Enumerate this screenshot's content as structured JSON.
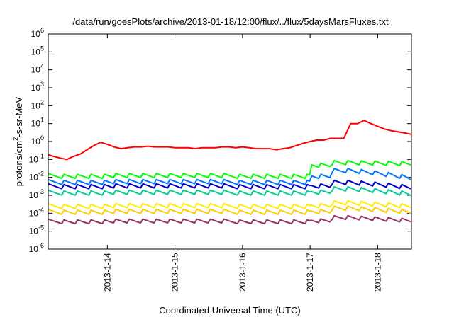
{
  "chart_data": {
    "type": "line",
    "title": "/data/run/goesPlots/archive/2013-01-18/12:00/flux/../flux/5daysMarsFluxes.txt",
    "xlabel": "Coordinated Universal Time (UTC)",
    "ylabel": "protons/cm2-s-sr-MeV",
    "yscale": "log",
    "ylim": [
      1e-06,
      1000000.0
    ],
    "xlim": [
      "2013-01-13T03:00",
      "2013-01-18T12:00"
    ],
    "grid": false,
    "legend": "none",
    "yticks": [
      {
        "exp": "-6"
      },
      {
        "exp": "-5"
      },
      {
        "exp": "-4"
      },
      {
        "exp": "-3"
      },
      {
        "exp": "-2"
      },
      {
        "exp": "-1"
      },
      {
        "exp": "0"
      },
      {
        "exp": "1"
      },
      {
        "exp": "2"
      },
      {
        "exp": "3"
      },
      {
        "exp": "4"
      },
      {
        "exp": "5"
      },
      {
        "exp": "6"
      }
    ],
    "xticks": [
      {
        "label": "2013-1-14",
        "day": 1
      },
      {
        "label": "2013-1-15",
        "day": 2
      },
      {
        "label": "2013-1-16",
        "day": 3
      },
      {
        "label": "2013-1-17",
        "day": 4
      },
      {
        "label": "2013-1-18",
        "day": 5
      }
    ],
    "series": [
      {
        "color": "#ff0000",
        "points": [
          [
            0.0,
            0.3
          ],
          [
            0.1,
            0.2
          ],
          [
            0.2,
            0.15
          ],
          [
            0.3,
            0.12
          ],
          [
            0.4,
            0.1
          ],
          [
            0.5,
            0.15
          ],
          [
            0.6,
            0.2
          ],
          [
            0.7,
            0.35
          ],
          [
            0.8,
            0.6
          ],
          [
            0.9,
            0.9
          ],
          [
            1.0,
            0.7
          ],
          [
            1.1,
            0.5
          ],
          [
            1.2,
            0.4
          ],
          [
            1.3,
            0.45
          ],
          [
            1.4,
            0.5
          ],
          [
            1.5,
            0.5
          ],
          [
            1.6,
            0.55
          ],
          [
            1.7,
            0.5
          ],
          [
            1.8,
            0.5
          ],
          [
            1.9,
            0.5
          ],
          [
            2.0,
            0.45
          ],
          [
            2.1,
            0.45
          ],
          [
            2.2,
            0.45
          ],
          [
            2.3,
            0.4
          ],
          [
            2.4,
            0.45
          ],
          [
            2.5,
            0.45
          ],
          [
            2.6,
            0.45
          ],
          [
            2.7,
            0.5
          ],
          [
            2.8,
            0.5
          ],
          [
            2.9,
            0.45
          ],
          [
            3.0,
            0.5
          ],
          [
            3.1,
            0.45
          ],
          [
            3.2,
            0.4
          ],
          [
            3.3,
            0.4
          ],
          [
            3.4,
            0.4
          ],
          [
            3.5,
            0.35
          ],
          [
            3.6,
            0.4
          ],
          [
            3.7,
            0.45
          ],
          [
            3.8,
            0.6
          ],
          [
            3.9,
            0.8
          ],
          [
            4.0,
            1.0
          ],
          [
            4.1,
            1.2
          ],
          [
            4.2,
            1.2
          ],
          [
            4.3,
            1.5
          ],
          [
            4.4,
            1.5
          ],
          [
            4.5,
            1.5
          ],
          [
            4.6,
            10
          ],
          [
            4.7,
            10
          ],
          [
            4.8,
            15
          ],
          [
            4.9,
            10
          ],
          [
            5.0,
            7
          ],
          [
            5.1,
            5
          ],
          [
            5.2,
            4
          ],
          [
            5.3,
            3.5
          ],
          [
            5.4,
            3
          ],
          [
            5.5,
            2.5
          ],
          [
            5.6,
            2
          ]
        ]
      },
      {
        "color": "#00ff00",
        "base": 0.012,
        "amp": 1.9,
        "p2": 0.05,
        "peak": 0.07,
        "end": 0.06
      },
      {
        "color": "#0077ff",
        "base": 0.0055,
        "amp": 1.9,
        "p2": 0.012,
        "peak": 0.025,
        "end": 0.009
      },
      {
        "color": "#0000cc",
        "base": 0.0032,
        "amp": 1.9,
        "p2": 0.0035,
        "peak": 0.0055,
        "end": 0.0028
      },
      {
        "color": "#00cc99",
        "base": 0.0014,
        "amp": 1.9,
        "p2": 0.0016,
        "peak": 0.0024,
        "end": 0.0012
      },
      {
        "color": "#ffee00",
        "base": 0.00025,
        "amp": 1.9,
        "p2": 0.00028,
        "peak": 0.0004,
        "end": 0.00025
      },
      {
        "color": "#ffcc00",
        "base": 0.00012,
        "amp": 1.9,
        "p2": 0.00013,
        "peak": 0.0002,
        "end": 0.00012
      },
      {
        "color": "#993366",
        "base": 3.5e-05,
        "amp": 1.8,
        "p2": 4e-05,
        "peak": 6e-05,
        "end": 4e-05
      }
    ]
  }
}
